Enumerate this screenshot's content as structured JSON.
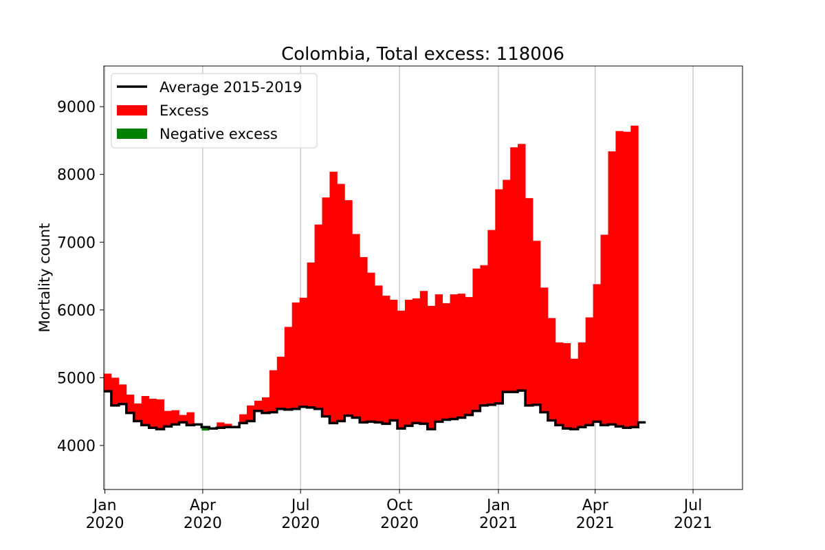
{
  "chart_data": {
    "type": "area",
    "title": "Colombia, Total excess: 118006",
    "xlabel": "",
    "ylabel": "Mortality count",
    "ylim": [
      3350,
      9600
    ],
    "y_ticks": [
      4000,
      5000,
      6000,
      7000,
      8000,
      9000
    ],
    "x_range": [
      "2019-12-31",
      "2021-08-16"
    ],
    "x_ticks": [
      {
        "date": "2020-01-01",
        "line1": "Jan",
        "line2": "2020"
      },
      {
        "date": "2020-04-01",
        "line1": "Apr",
        "line2": "2020"
      },
      {
        "date": "2020-07-01",
        "line1": "Jul",
        "line2": "2020"
      },
      {
        "date": "2020-10-01",
        "line1": "Oct",
        "line2": "2020"
      },
      {
        "date": "2021-01-01",
        "line1": "Jan",
        "line2": "2021"
      },
      {
        "date": "2021-04-01",
        "line1": "Apr",
        "line2": "2021"
      },
      {
        "date": "2021-07-01",
        "line1": "Jul",
        "line2": "2021"
      }
    ],
    "grid": "x",
    "legend_position": "top-left",
    "week_start": [
      "2019-12-31",
      "2020-01-07",
      "2020-01-14",
      "2020-01-21",
      "2020-01-28",
      "2020-02-04",
      "2020-02-11",
      "2020-02-18",
      "2020-02-25",
      "2020-03-03",
      "2020-03-10",
      "2020-03-17",
      "2020-03-24",
      "2020-03-31",
      "2020-04-07",
      "2020-04-14",
      "2020-04-21",
      "2020-04-28",
      "2020-05-05",
      "2020-05-12",
      "2020-05-19",
      "2020-05-26",
      "2020-06-02",
      "2020-06-09",
      "2020-06-16",
      "2020-06-23",
      "2020-06-30",
      "2020-07-07",
      "2020-07-14",
      "2020-07-21",
      "2020-07-28",
      "2020-08-04",
      "2020-08-11",
      "2020-08-18",
      "2020-08-25",
      "2020-09-01",
      "2020-09-08",
      "2020-09-15",
      "2020-09-22",
      "2020-09-29",
      "2020-10-06",
      "2020-10-13",
      "2020-10-20",
      "2020-10-27",
      "2020-11-03",
      "2020-11-10",
      "2020-11-17",
      "2020-11-24",
      "2020-12-01",
      "2020-12-08",
      "2020-12-15",
      "2020-12-22",
      "2020-12-29",
      "2021-01-05",
      "2021-01-12",
      "2021-01-19",
      "2021-01-26",
      "2021-02-02",
      "2021-02-09",
      "2021-02-16",
      "2021-02-23",
      "2021-03-02",
      "2021-03-09",
      "2021-03-16",
      "2021-03-23",
      "2021-03-30",
      "2021-04-06",
      "2021-04-13",
      "2021-04-20",
      "2021-04-27",
      "2021-05-04",
      "2021-05-11"
    ],
    "week_end": "2021-05-18",
    "series": [
      {
        "name": "Average 2015-2019",
        "color": "#000000",
        "values": [
          4800,
          4590,
          4610,
          4480,
          4360,
          4300,
          4260,
          4240,
          4280,
          4310,
          4340,
          4300,
          4310,
          4270,
          4250,
          4260,
          4270,
          4270,
          4330,
          4360,
          4510,
          4480,
          4490,
          4540,
          4530,
          4540,
          4570,
          4560,
          4540,
          4430,
          4330,
          4360,
          4440,
          4410,
          4340,
          4350,
          4340,
          4320,
          4370,
          4250,
          4290,
          4330,
          4320,
          4240,
          4350,
          4380,
          4390,
          4410,
          4450,
          4510,
          4590,
          4600,
          4620,
          4790,
          4790,
          4810,
          4590,
          4600,
          4490,
          4370,
          4300,
          4250,
          4240,
          4270,
          4300,
          4350,
          4300,
          4310,
          4280,
          4260,
          4270,
          4340
        ]
      },
      {
        "name": "Mortality",
        "values": [
          5060,
          5000,
          4900,
          4750,
          4620,
          4730,
          4690,
          4680,
          4510,
          4520,
          4450,
          4490,
          4320,
          4220,
          4260,
          4340,
          4320,
          4290,
          4460,
          4590,
          4660,
          4710,
          5110,
          5310,
          5750,
          6110,
          6180,
          6700,
          7260,
          7660,
          8040,
          7860,
          7620,
          7120,
          6780,
          6550,
          6360,
          6210,
          6150,
          5990,
          6150,
          6170,
          6280,
          6060,
          6230,
          6100,
          6230,
          6240,
          6190,
          6610,
          6660,
          7180,
          7780,
          7920,
          8400,
          8450,
          7650,
          7020,
          6330,
          5880,
          5520,
          5510,
          5280,
          5520,
          5890,
          6380,
          7110,
          8340,
          8640,
          8630,
          8720,
          4340
        ]
      }
    ],
    "legend": [
      {
        "label": "Average 2015-2019",
        "kind": "line",
        "color": "#000000"
      },
      {
        "label": "Excess",
        "kind": "patch",
        "color": "#ff0000"
      },
      {
        "label": "Negative excess",
        "kind": "patch",
        "color": "#008000"
      }
    ]
  }
}
